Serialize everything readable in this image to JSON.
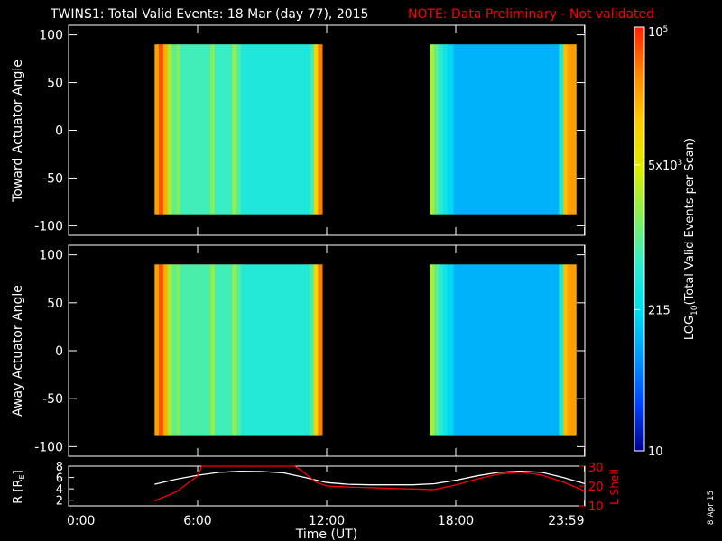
{
  "title": {
    "main": "TWINS1: Total Valid Events: 18 Mar (day  77), 2015",
    "note": "NOTE: Data Preliminary - Not validated"
  },
  "colors": {
    "background": "#000000",
    "axes": "#ffffff",
    "note": "#ff0000",
    "r_line": "#ffffff",
    "l_shell_line": "#ff0000",
    "colorscale": [
      "#00008b",
      "#0044ff",
      "#0099ff",
      "#00ddee",
      "#33eecc",
      "#88ee55",
      "#ddee00",
      "#ffcc00",
      "#ff8800",
      "#ff2200"
    ]
  },
  "stamp": "8 Apr 15",
  "colorbar": {
    "label": "LOG10(Total Valid Events per Scan)",
    "label_parts": {
      "prefix": "LOG",
      "sub": "10",
      "suffix": "(Total Valid Events per Scan)"
    },
    "ticks": [
      "10",
      "215",
      "5x10^3",
      "10^5"
    ],
    "tick_values": [
      10,
      215,
      5000,
      100000
    ],
    "range": [
      10,
      100000
    ],
    "scale": "log"
  },
  "time_axis": {
    "label": "Time (UT)",
    "ticks": [
      "0:00",
      "6:00",
      "12:00",
      "18:00",
      "23:59"
    ],
    "tick_hours": [
      0,
      6,
      12,
      18,
      23.983
    ],
    "range_hours": [
      0,
      24
    ]
  },
  "chart_data": [
    {
      "type": "heatmap",
      "panel": "toward",
      "ylabel": "Toward Actuator Angle",
      "ylim": [
        -110,
        110
      ],
      "yticks": [
        100,
        50,
        0,
        -50,
        -100
      ],
      "xlim_hours": [
        0,
        24
      ],
      "data_blocks": [
        {
          "start_hour": 4.0,
          "end_hour": 11.8,
          "angle_range": [
            -88,
            90
          ],
          "columns": [
            {
              "t0": 4.0,
              "t1": 4.2,
              "log_events": 4.4
            },
            {
              "t0": 4.2,
              "t1": 4.4,
              "log_events": 4.8
            },
            {
              "t0": 4.4,
              "t1": 4.6,
              "log_events": 4.3
            },
            {
              "t0": 4.6,
              "t1": 4.8,
              "log_events": 3.4
            },
            {
              "t0": 4.8,
              "t1": 5.0,
              "log_events": 3.0
            },
            {
              "t0": 5.0,
              "t1": 5.2,
              "log_events": 3.2
            },
            {
              "t0": 5.2,
              "t1": 6.6,
              "log_events": 2.85
            },
            {
              "t0": 6.6,
              "t1": 6.8,
              "log_events": 3.2
            },
            {
              "t0": 6.8,
              "t1": 7.6,
              "log_events": 2.8
            },
            {
              "t0": 7.6,
              "t1": 7.8,
              "log_events": 3.3
            },
            {
              "t0": 7.8,
              "t1": 8.0,
              "log_events": 2.95
            },
            {
              "t0": 8.0,
              "t1": 11.2,
              "log_events": 2.6
            },
            {
              "t0": 11.2,
              "t1": 11.4,
              "log_events": 2.8
            },
            {
              "t0": 11.4,
              "t1": 11.6,
              "log_events": 4.0
            },
            {
              "t0": 11.6,
              "t1": 11.8,
              "log_events": 4.6
            }
          ]
        },
        {
          "start_hour": 16.8,
          "end_hour": 23.6,
          "angle_range": [
            -88,
            90
          ],
          "columns": [
            {
              "t0": 16.8,
              "t1": 17.0,
              "log_events": 3.4
            },
            {
              "t0": 17.0,
              "t1": 17.2,
              "log_events": 3.0
            },
            {
              "t0": 17.2,
              "t1": 17.4,
              "log_events": 2.7
            },
            {
              "t0": 17.4,
              "t1": 17.6,
              "log_events": 2.5
            },
            {
              "t0": 17.6,
              "t1": 17.9,
              "log_events": 2.3
            },
            {
              "t0": 17.9,
              "t1": 22.8,
              "log_events": 2.05
            },
            {
              "t0": 22.8,
              "t1": 23.0,
              "log_events": 2.6
            },
            {
              "t0": 23.0,
              "t1": 23.2,
              "log_events": 4.2
            },
            {
              "t0": 23.2,
              "t1": 23.6,
              "log_events": 4.4
            }
          ]
        }
      ]
    },
    {
      "type": "heatmap",
      "panel": "away",
      "ylabel": "Away Actuator Angle",
      "ylim": [
        -110,
        110
      ],
      "yticks": [
        100,
        50,
        0,
        -50,
        -100
      ],
      "xlim_hours": [
        0,
        24
      ],
      "data_blocks": [
        {
          "start_hour": 4.0,
          "end_hour": 11.8,
          "angle_range": [
            -88,
            90
          ],
          "columns": [
            {
              "t0": 4.0,
              "t1": 4.2,
              "log_events": 4.4
            },
            {
              "t0": 4.2,
              "t1": 4.4,
              "log_events": 4.8
            },
            {
              "t0": 4.4,
              "t1": 4.6,
              "log_events": 4.3
            },
            {
              "t0": 4.6,
              "t1": 4.8,
              "log_events": 3.4
            },
            {
              "t0": 4.8,
              "t1": 5.0,
              "log_events": 3.0
            },
            {
              "t0": 5.0,
              "t1": 5.2,
              "log_events": 3.2
            },
            {
              "t0": 5.2,
              "t1": 6.6,
              "log_events": 2.9
            },
            {
              "t0": 6.6,
              "t1": 6.8,
              "log_events": 3.3
            },
            {
              "t0": 6.8,
              "t1": 7.6,
              "log_events": 2.85
            },
            {
              "t0": 7.6,
              "t1": 7.8,
              "log_events": 3.3
            },
            {
              "t0": 7.8,
              "t1": 8.0,
              "log_events": 3.0
            },
            {
              "t0": 8.0,
              "t1": 11.2,
              "log_events": 2.65
            },
            {
              "t0": 11.2,
              "t1": 11.4,
              "log_events": 2.9
            },
            {
              "t0": 11.4,
              "t1": 11.6,
              "log_events": 4.0
            },
            {
              "t0": 11.6,
              "t1": 11.8,
              "log_events": 4.6
            }
          ]
        },
        {
          "start_hour": 16.8,
          "end_hour": 23.6,
          "angle_range": [
            -88,
            90
          ],
          "columns": [
            {
              "t0": 16.8,
              "t1": 17.0,
              "log_events": 3.4
            },
            {
              "t0": 17.0,
              "t1": 17.2,
              "log_events": 3.0
            },
            {
              "t0": 17.2,
              "t1": 17.4,
              "log_events": 2.7
            },
            {
              "t0": 17.4,
              "t1": 17.6,
              "log_events": 2.5
            },
            {
              "t0": 17.6,
              "t1": 17.9,
              "log_events": 2.3
            },
            {
              "t0": 17.9,
              "t1": 22.8,
              "log_events": 2.05
            },
            {
              "t0": 22.8,
              "t1": 23.0,
              "log_events": 2.6
            },
            {
              "t0": 23.0,
              "t1": 23.2,
              "log_events": 4.2
            },
            {
              "t0": 23.2,
              "t1": 23.6,
              "log_events": 4.4
            }
          ]
        }
      ]
    },
    {
      "type": "line",
      "panel": "orbit",
      "ylabel": "R [RE]",
      "ylabel_parts": {
        "prefix": "R [R",
        "sub": "E",
        "suffix": "]"
      },
      "ylim": [
        1,
        8
      ],
      "yticks": [
        8,
        6,
        4,
        2
      ],
      "y2label": "L Shell",
      "y2lim": [
        10,
        30
      ],
      "y2ticks": [
        30,
        20,
        10
      ],
      "series": [
        {
          "name": "R [RE]",
          "axis": "left",
          "x": [
            4.0,
            5.0,
            6.0,
            7.0,
            8.0,
            9.0,
            10.0,
            11.0,
            12.0,
            13.0,
            14.0,
            15.0,
            16.0,
            17.0,
            18.0,
            19.0,
            20.0,
            21.0,
            22.0,
            23.0,
            24.0
          ],
          "y": [
            4.8,
            5.7,
            6.4,
            6.9,
            7.1,
            7.05,
            6.8,
            6.0,
            5.1,
            4.8,
            4.7,
            4.7,
            4.7,
            4.9,
            5.5,
            6.3,
            6.9,
            7.1,
            6.9,
            6.0,
            4.9
          ]
        },
        {
          "name": "L Shell",
          "axis": "right",
          "x": [
            4.0,
            5.0,
            6.0,
            6.2,
            10.5,
            10.8,
            11.5,
            12.0,
            13.0,
            14.0,
            15.0,
            16.0,
            17.0,
            18.0,
            19.0,
            20.0,
            21.0,
            22.0,
            23.0,
            24.0
          ],
          "y": [
            12.5,
            17.0,
            25.0,
            30.0,
            30.0,
            28.0,
            22.0,
            20.0,
            19.5,
            19.2,
            18.8,
            18.5,
            18.2,
            20.5,
            23.5,
            26.0,
            27.0,
            25.5,
            22.0,
            17.5
          ]
        }
      ]
    }
  ]
}
